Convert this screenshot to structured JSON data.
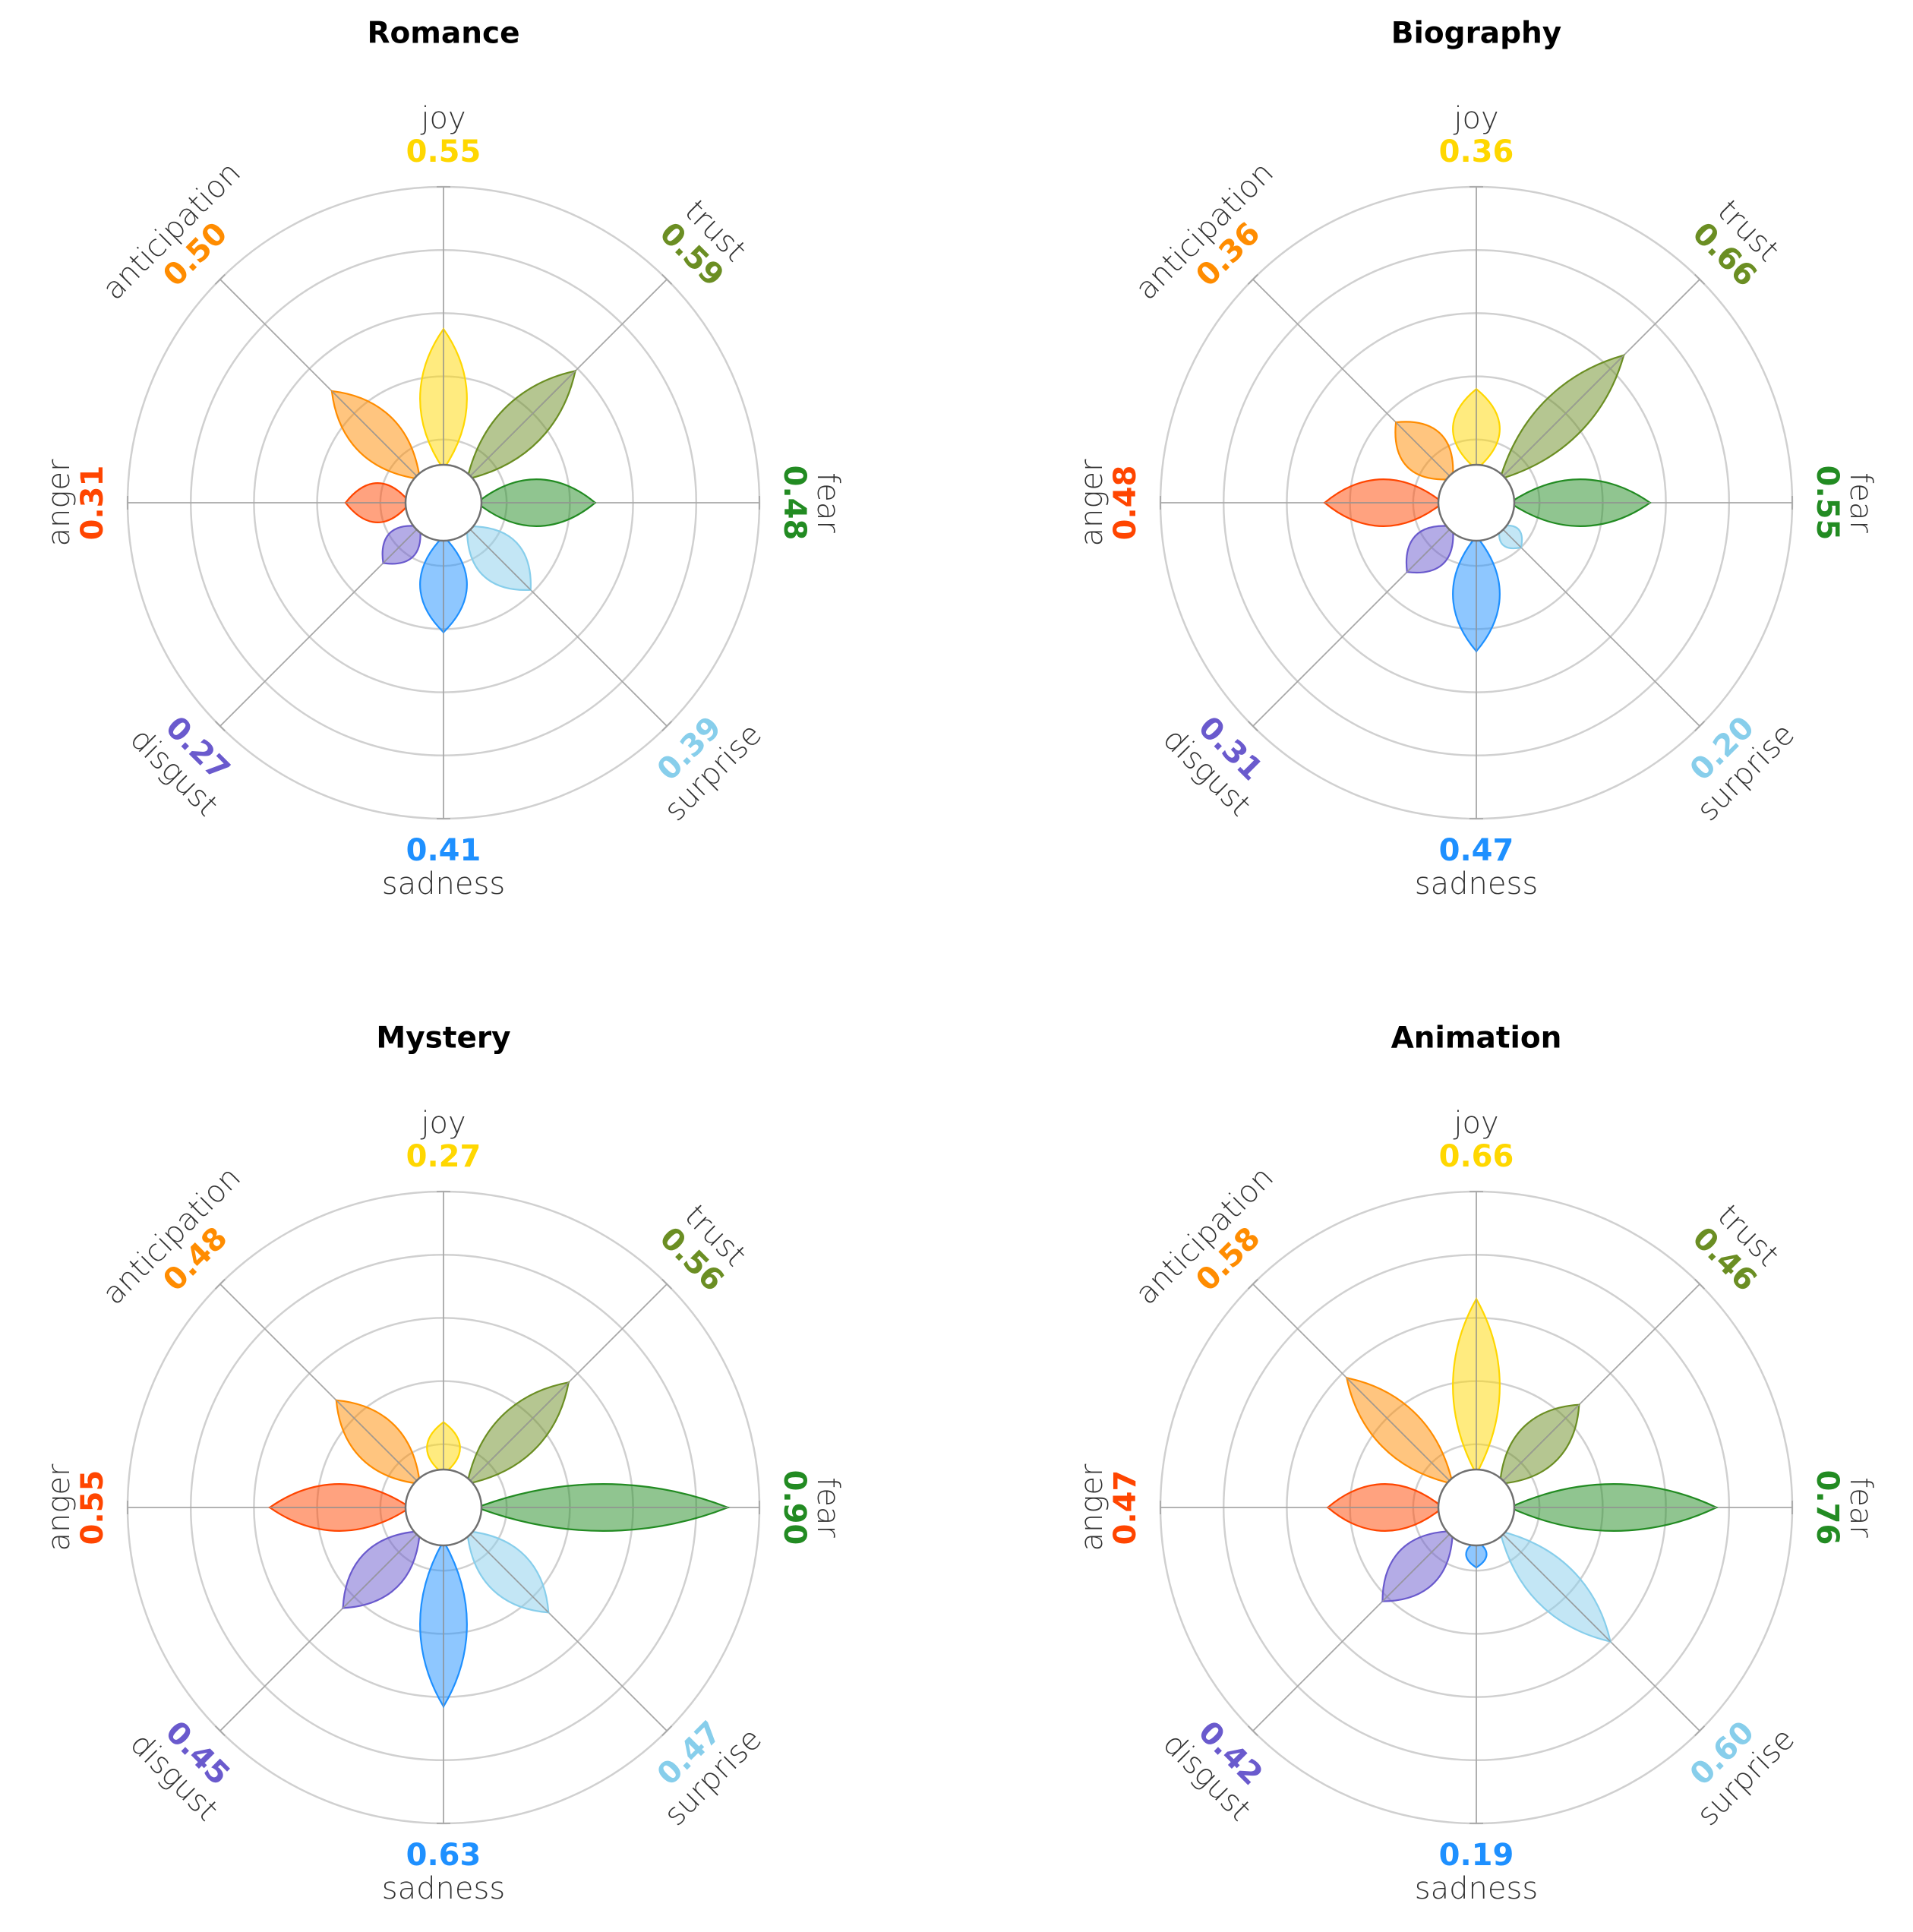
{
  "emotions": [
    "joy",
    "trust",
    "fear",
    "surprise",
    "sadness",
    "disgust",
    "anger",
    "anticipation"
  ],
  "colors": {
    "joy": "#FFD700",
    "trust": "#6B8E23",
    "fear": "#228B22",
    "surprise": "#87CEEB",
    "sadness": "#1E90FF",
    "disgust": "#6A5ACD",
    "anger": "#FF4500",
    "anticipation": "#FF8C00"
  },
  "chart_data": [
    {
      "type": "radar",
      "title": "Romance",
      "categories": [
        "joy",
        "trust",
        "fear",
        "surprise",
        "sadness",
        "disgust",
        "anger",
        "anticipation"
      ],
      "values": [
        0.55,
        0.59,
        0.48,
        0.39,
        0.41,
        0.27,
        0.31,
        0.5
      ],
      "labels": [
        "0.55",
        "0.59",
        "0.48",
        "0.39",
        "0.41",
        "0.27",
        "0.31",
        "0.50"
      ],
      "rlim": [
        0,
        1
      ],
      "grid": true
    },
    {
      "type": "radar",
      "title": "Biography",
      "categories": [
        "joy",
        "trust",
        "fear",
        "surprise",
        "sadness",
        "disgust",
        "anger",
        "anticipation"
      ],
      "values": [
        0.36,
        0.66,
        0.55,
        0.2,
        0.47,
        0.31,
        0.48,
        0.36
      ],
      "labels": [
        "0.36",
        "0.66",
        "0.55",
        "0.20",
        "0.47",
        "0.31",
        "0.48",
        "0.36"
      ],
      "rlim": [
        0,
        1
      ],
      "grid": true
    },
    {
      "type": "radar",
      "title": "Mystery",
      "categories": [
        "joy",
        "trust",
        "fear",
        "surprise",
        "sadness",
        "disgust",
        "anger",
        "anticipation"
      ],
      "values": [
        0.27,
        0.56,
        0.9,
        0.47,
        0.63,
        0.45,
        0.55,
        0.48
      ],
      "labels": [
        "0.27",
        "0.56",
        "0.90",
        "0.47",
        "0.63",
        "0.45",
        "0.55",
        "0.48"
      ],
      "rlim": [
        0,
        1
      ],
      "grid": true
    },
    {
      "type": "radar",
      "title": "Animation",
      "categories": [
        "joy",
        "trust",
        "fear",
        "surprise",
        "sadness",
        "disgust",
        "anger",
        "anticipation"
      ],
      "values": [
        0.66,
        0.46,
        0.76,
        0.6,
        0.19,
        0.42,
        0.47,
        0.58
      ],
      "labels": [
        "0.66",
        "0.46",
        "0.76",
        "0.60",
        "0.19",
        "0.42",
        "0.47",
        "0.58"
      ],
      "rlim": [
        0,
        1
      ],
      "grid": true
    }
  ]
}
